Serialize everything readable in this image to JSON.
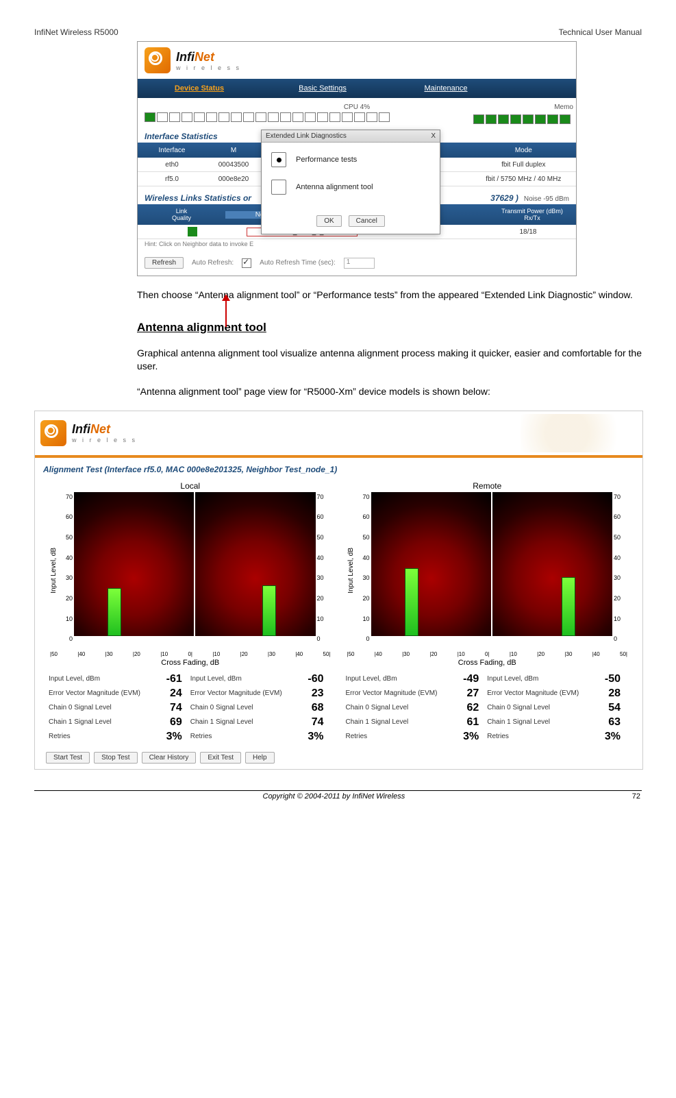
{
  "header": {
    "left": "InfiNet Wireless R5000",
    "right": "Technical User Manual"
  },
  "shot1": {
    "logo": {
      "name_a": "Infi",
      "name_b": "Net",
      "sub": "w i r e l e s s"
    },
    "tabs": [
      "Device Status",
      "Basic Settings",
      "Maintenance"
    ],
    "cpu_label": "CPU 4%",
    "mem_label": "Memo",
    "sect1": "Interface Statistics",
    "thdr1": [
      "Interface",
      "M",
      "",
      "",
      "Mode"
    ],
    "rows": [
      [
        "eth0",
        "00043500",
        "",
        "",
        "fbit Full duplex"
      ],
      [
        "rf5.0",
        "000e8e20",
        "",
        "",
        "fbit / 5750 MHz / 40 MHz"
      ]
    ],
    "sect2_a": "Wireless Links Statistics or",
    "sect2_b": "37629 )",
    "noise": "Noise -95 dBm",
    "thdr2": {
      "lq": "Link\nQuality",
      "nb": "Neighbor",
      "tp": "Transmit Power (dBm)\nRx/Tx"
    },
    "row2": {
      "name": "Test_node_1_",
      "mac": "0",
      "tp": "18/18"
    },
    "hint": "Hint: Click on Neighbor data to invoke E",
    "refresh": "Refresh",
    "auto": "Auto Refresh:",
    "autot": "Auto Refresh Time (sec):",
    "autoval": "1",
    "modal": {
      "title": "Extended Link Diagnostics",
      "x": "X",
      "r1": "Performance tests",
      "r2": "Antenna alignment tool",
      "ok": "OK",
      "cancel": "Cancel"
    }
  },
  "para1": "Then choose “Antenna alignment tool” or “Performance tests” from the appeared “Extended Link Diagnostic” window.",
  "h2": "Antenna alignment tool",
  "para2": "Graphical antenna alignment tool visualize antenna alignment process making it quicker, easier and comfortable for the user.",
  "para3": "“Antenna alignment tool” page view for “R5000-Xm” device models is shown below:",
  "shot2": {
    "align_title": "Alignment Test (Interface rf5.0, MAC 000e8e201325, Neighbor Test_node_1)",
    "chart_titles": [
      "Local",
      "Remote"
    ],
    "ylabel": "Input Level, dB",
    "xlabel": "Cross Fading, dB",
    "yticks": [
      "70",
      "60",
      "50",
      "40",
      "30",
      "20",
      "10",
      "0"
    ],
    "xticks": [
      "|50",
      "|40",
      "|30",
      "|20",
      "|10",
      "0|",
      "|10",
      "|20",
      "|30",
      "|40",
      "50|"
    ],
    "bars": {
      "local": [
        {
          "pos_pct": 28,
          "h_pct": 32
        },
        {
          "pos_pct": 56,
          "h_pct": 34
        }
      ],
      "remote": [
        {
          "pos_pct": 28,
          "h_pct": 46
        },
        {
          "pos_pct": 58,
          "h_pct": 40
        }
      ]
    },
    "stats_labels": [
      "Input Level, dBm",
      "Error Vector Magnitude (EVM)",
      "Chain 0 Signal Level",
      "Chain 1 Signal Level",
      "Retries"
    ],
    "stats": {
      "local": [
        [
          "-61",
          "-60"
        ],
        [
          "24",
          "23"
        ],
        [
          "74",
          "68"
        ],
        [
          "69",
          "74"
        ],
        [
          "3%",
          "3%"
        ]
      ],
      "remote": [
        [
          "-49",
          "-50"
        ],
        [
          "27",
          "28"
        ],
        [
          "62",
          "54"
        ],
        [
          "61",
          "63"
        ],
        [
          "3%",
          "3%"
        ]
      ]
    },
    "buttons": [
      "Start Test",
      "Stop Test",
      "Clear History",
      "Exit Test",
      "Help"
    ]
  },
  "footer": {
    "copy": "Copyright ©  2004-2011 by InfiNet Wireless",
    "page": "72"
  }
}
